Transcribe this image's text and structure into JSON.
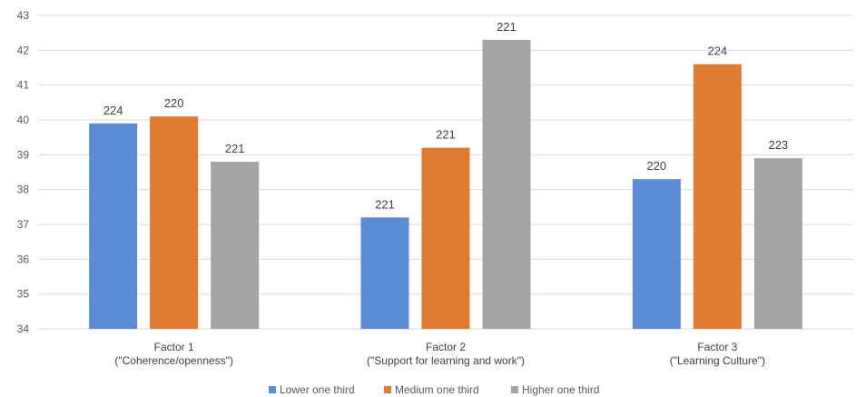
{
  "chart_data": {
    "type": "bar",
    "categories": [
      [
        "Factor 1",
        "(\"Coherence/openness\")"
      ],
      [
        "Factor 2",
        "(\"Support for learning and work\")"
      ],
      [
        "Factor 3",
        "(\"Learning Culture\")"
      ]
    ],
    "series": [
      {
        "name": "Lower one third",
        "color": "#5B8DD6",
        "values": [
          39.9,
          37.2,
          38.3
        ],
        "labels": [
          "224",
          "221",
          "220"
        ]
      },
      {
        "name": "Medium one third",
        "color": "#E07B34",
        "values": [
          40.1,
          39.2,
          41.6
        ],
        "labels": [
          "220",
          "221",
          "224"
        ]
      },
      {
        "name": "Higher one third",
        "color": "#A5A5A5",
        "values": [
          38.8,
          42.3,
          38.9
        ],
        "labels": [
          "221",
          "221",
          "223"
        ]
      }
    ],
    "ylim": [
      34,
      43
    ],
    "yticks": [
      34,
      35,
      36,
      37,
      38,
      39,
      40,
      41,
      42,
      43
    ],
    "grid": true,
    "legend": "bottom"
  }
}
